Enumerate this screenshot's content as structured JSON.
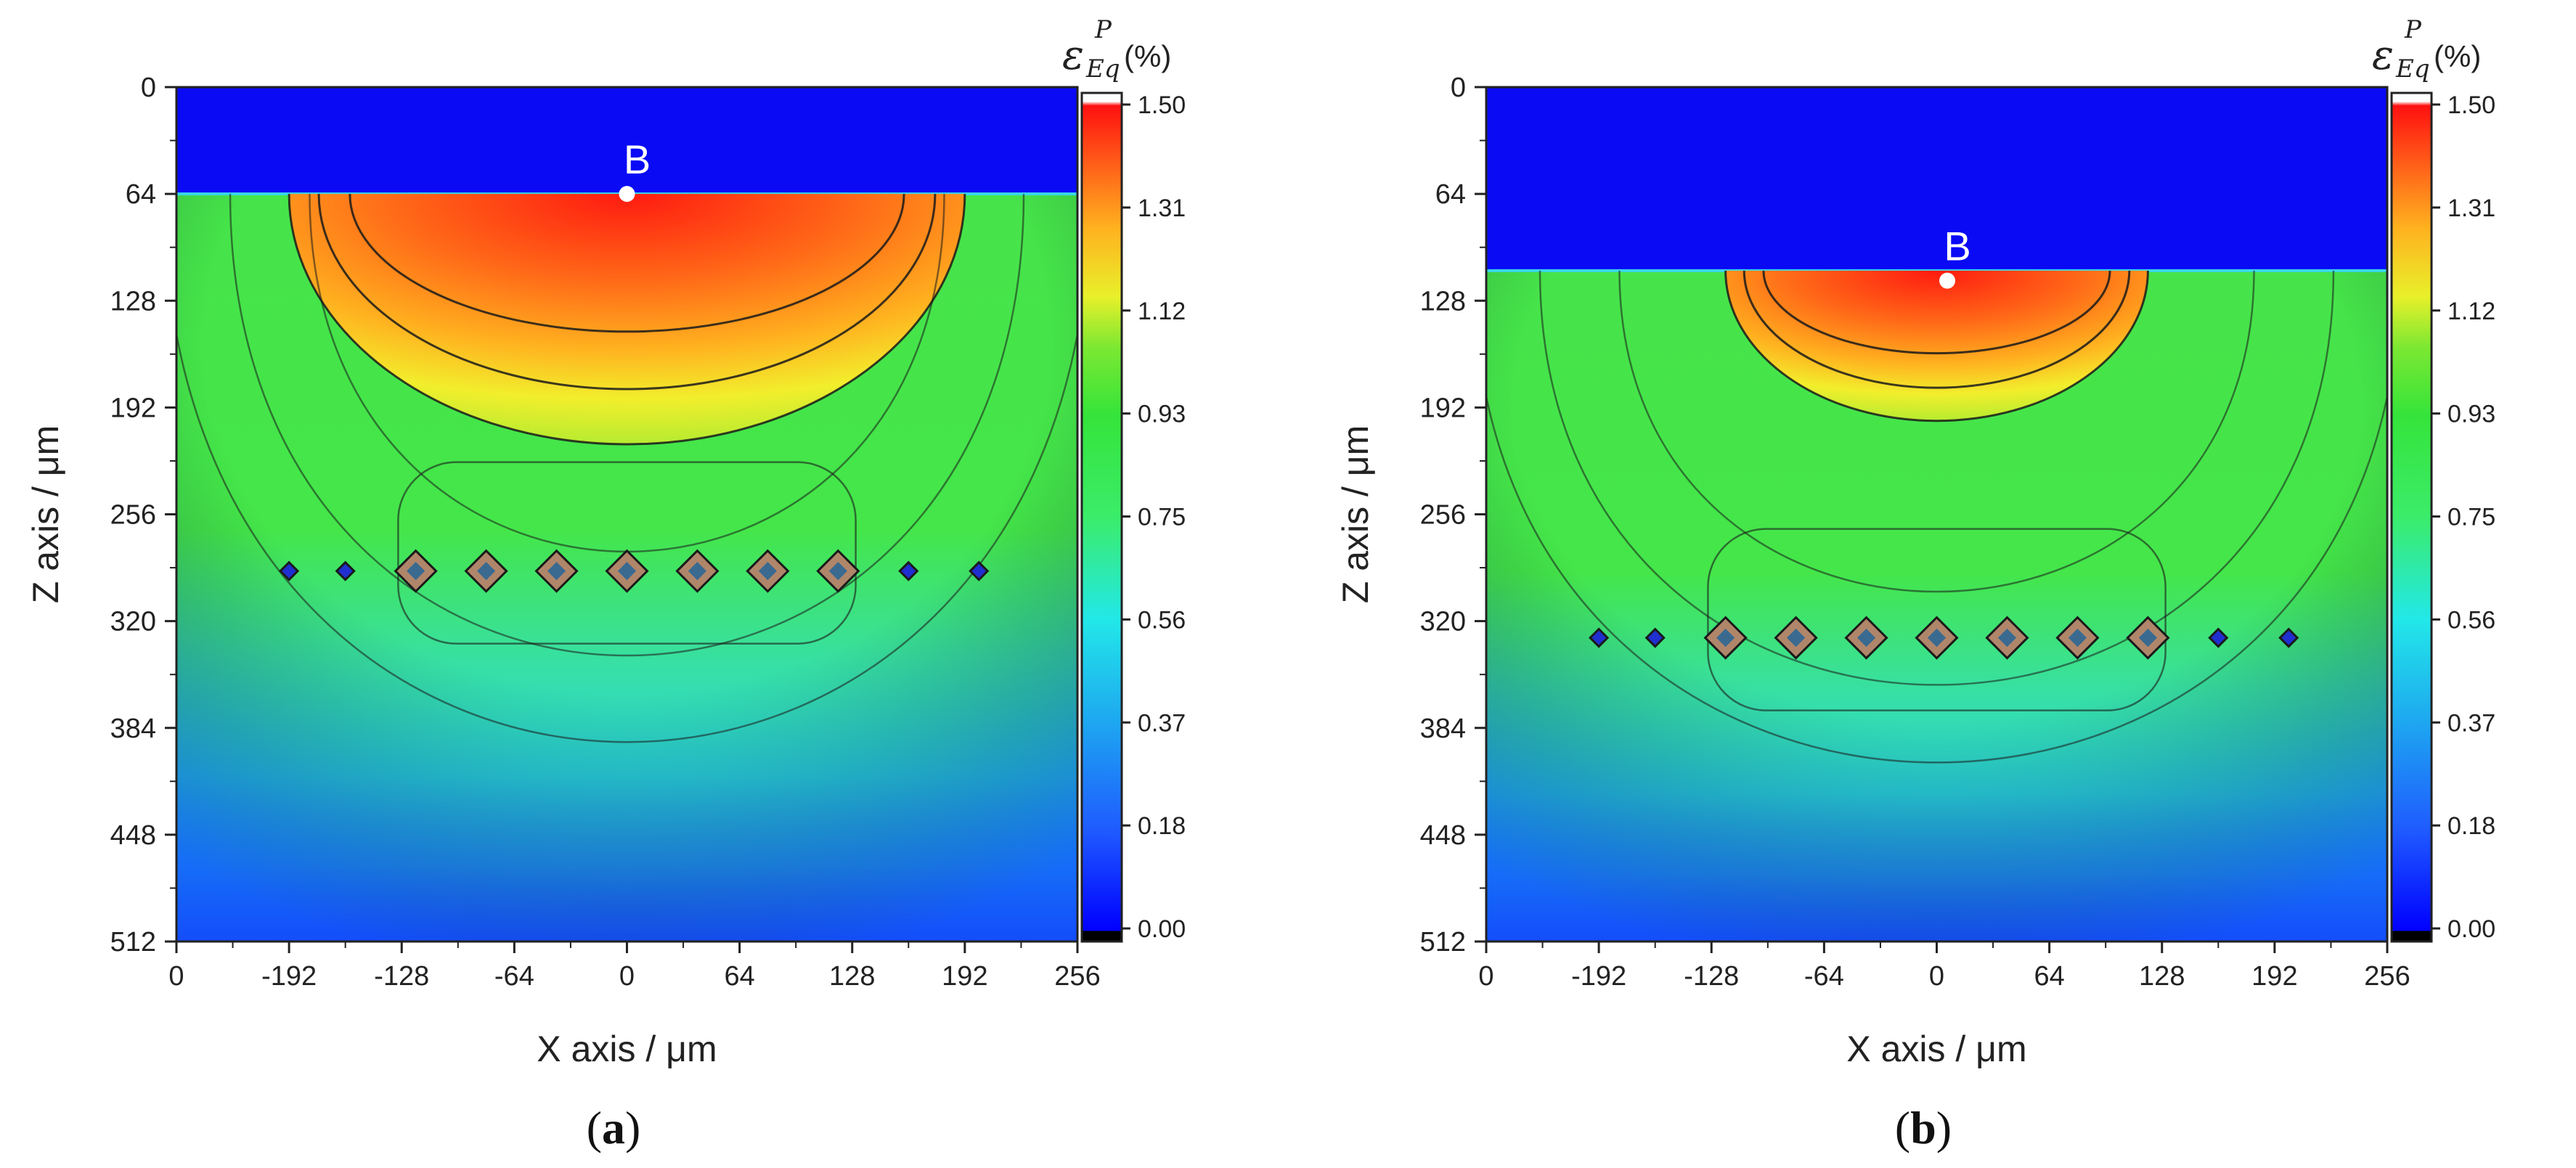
{
  "chart_data": [
    {
      "id": "a",
      "type": "heatmap",
      "caption_open": "(",
      "caption_letter": "a",
      "caption_close": ")",
      "xlabel": "X axis / μm",
      "ylabel": "Z axis / μm",
      "x_tick_labels": [
        "0",
        "-192",
        "-128",
        "-64",
        "0",
        "64",
        "128",
        "192",
        "256"
      ],
      "y_tick_labels": [
        "0",
        "64",
        "128",
        "192",
        "256",
        "320",
        "384",
        "448",
        "512"
      ],
      "y_range": [
        0,
        512
      ],
      "surface_depth": 64,
      "indent_center_x": 0,
      "indent_bottom_z": 214,
      "indent_half_width": 192,
      "max_strain_pct": 1.5,
      "defect_row_z": 290,
      "defect_x": [
        -192,
        -160,
        -120,
        -80,
        -40,
        0,
        40,
        80,
        120,
        160,
        200
      ],
      "marker": {
        "label": "B",
        "x": 0,
        "z": 64
      },
      "colorbar": {
        "symbol": "ε",
        "superscript": "P",
        "subscript": "Eq",
        "unit": "(%)",
        "tick_labels": [
          "1.50",
          "1.31",
          "1.12",
          "0.93",
          "0.75",
          "0.56",
          "0.37",
          "0.18",
          "0.00"
        ],
        "range": [
          0,
          1.5
        ]
      }
    },
    {
      "id": "b",
      "type": "heatmap",
      "caption_open": "(",
      "caption_letter": "b",
      "caption_close": ")",
      "xlabel": "X axis / μm",
      "ylabel": "Z axis / μm",
      "x_tick_labels": [
        "0",
        "-192",
        "-128",
        "-64",
        "0",
        "64",
        "128",
        "192",
        "256"
      ],
      "y_tick_labels": [
        "0",
        "64",
        "128",
        "192",
        "256",
        "320",
        "384",
        "448",
        "512"
      ],
      "y_range": [
        0,
        512
      ],
      "surface_depth": 110,
      "indent_center_x": 0,
      "indent_bottom_z": 200,
      "indent_half_width": 120,
      "max_strain_pct": 1.5,
      "defect_row_z": 330,
      "defect_x": [
        -192,
        -160,
        -120,
        -80,
        -40,
        0,
        40,
        80,
        120,
        160,
        200
      ],
      "marker": {
        "label": "B",
        "x": 6,
        "z": 116
      },
      "colorbar": {
        "symbol": "ε",
        "superscript": "P",
        "subscript": "Eq",
        "unit": "(%)",
        "tick_labels": [
          "1.50",
          "1.31",
          "1.12",
          "0.93",
          "0.75",
          "0.56",
          "0.37",
          "0.18",
          "0.00"
        ],
        "range": [
          0,
          1.5
        ]
      }
    }
  ]
}
